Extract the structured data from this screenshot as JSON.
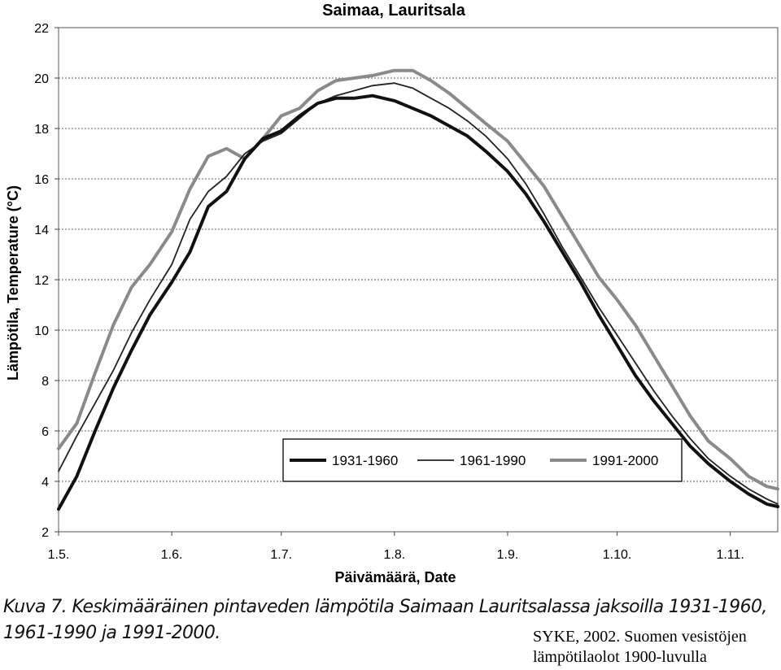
{
  "chart_data": {
    "type": "line",
    "title": "Saimaa, Lauritsala",
    "xlabel": "Päivämäärä, Date",
    "ylabel": "Lämpötila, Temperature (°C)",
    "ylim": [
      2,
      22
    ],
    "yticks": [
      "2",
      "4",
      "6",
      "8",
      "10",
      "12",
      "14",
      "16",
      "18",
      "20",
      "22"
    ],
    "xlim": [
      0,
      197
    ],
    "xticks": [
      {
        "label": "1.5.",
        "day": 0
      },
      {
        "label": "1.6.",
        "day": 31
      },
      {
        "label": "1.7.",
        "day": 61
      },
      {
        "label": "1.8.",
        "day": 92
      },
      {
        "label": "1.9.",
        "day": 123
      },
      {
        "label": "1.10.",
        "day": 153
      },
      {
        "label": "1.11.",
        "day": 184
      }
    ],
    "grid": "horizontal dotted",
    "legend_position": "bottom-right",
    "series": [
      {
        "name": "1931-1960",
        "color": "#111111",
        "style": "thick",
        "days": [
          0,
          5,
          10,
          15,
          20,
          25,
          31,
          36,
          41,
          46,
          51,
          56,
          61,
          66,
          71,
          76,
          81,
          86,
          92,
          97,
          102,
          107,
          112,
          117,
          123,
          128,
          133,
          138,
          143,
          148,
          153,
          158,
          163,
          168,
          173,
          178,
          184,
          189,
          194,
          197
        ],
        "values": [
          2.9,
          4.2,
          6.0,
          7.7,
          9.2,
          10.6,
          11.9,
          13.1,
          14.9,
          15.5,
          16.8,
          17.6,
          17.9,
          18.5,
          19.0,
          19.2,
          19.2,
          19.3,
          19.1,
          18.8,
          18.5,
          18.1,
          17.7,
          17.1,
          16.3,
          15.4,
          14.3,
          13.1,
          11.9,
          10.6,
          9.4,
          8.2,
          7.2,
          6.3,
          5.4,
          4.7,
          4.0,
          3.5,
          3.1,
          3.0
        ]
      },
      {
        "name": "1961-1990",
        "color": "#222222",
        "style": "thin",
        "days": [
          0,
          5,
          10,
          15,
          20,
          25,
          31,
          36,
          41,
          46,
          51,
          56,
          61,
          66,
          71,
          76,
          81,
          86,
          92,
          97,
          102,
          107,
          112,
          117,
          123,
          128,
          133,
          138,
          143,
          148,
          153,
          158,
          163,
          168,
          173,
          178,
          184,
          189,
          194,
          197
        ],
        "values": [
          4.4,
          5.8,
          7.1,
          8.4,
          9.9,
          11.2,
          12.6,
          14.4,
          15.5,
          16.1,
          17.0,
          17.5,
          17.8,
          18.4,
          19.0,
          19.3,
          19.5,
          19.7,
          19.8,
          19.6,
          19.2,
          18.8,
          18.3,
          17.7,
          16.8,
          15.8,
          14.6,
          13.3,
          12.1,
          10.9,
          9.8,
          8.7,
          7.6,
          6.6,
          5.7,
          4.9,
          4.2,
          3.7,
          3.3,
          3.1
        ]
      },
      {
        "name": "1991-2000",
        "color": "#8a8a8a",
        "style": "thick",
        "days": [
          0,
          5,
          10,
          15,
          20,
          25,
          31,
          36,
          41,
          46,
          51,
          56,
          61,
          66,
          71,
          76,
          81,
          86,
          92,
          97,
          102,
          107,
          112,
          117,
          123,
          128,
          133,
          138,
          143,
          148,
          153,
          158,
          163,
          168,
          173,
          178,
          184,
          189,
          194,
          197
        ],
        "values": [
          5.3,
          6.3,
          8.3,
          10.2,
          11.7,
          12.6,
          13.9,
          15.6,
          16.9,
          17.2,
          16.8,
          17.6,
          18.5,
          18.8,
          19.5,
          19.9,
          20.0,
          20.1,
          20.3,
          20.3,
          19.9,
          19.4,
          18.8,
          18.2,
          17.5,
          16.6,
          15.7,
          14.5,
          13.3,
          12.1,
          11.2,
          10.2,
          9.0,
          7.8,
          6.6,
          5.6,
          4.9,
          4.2,
          3.8,
          3.7
        ]
      }
    ]
  },
  "caption": {
    "line1": "Kuva 7. Keskimääräinen pintaveden lämpötila Saimaan Lauritsalassa jaksoilla 1931-1960,",
    "line2": "1961-1990 ja 1991-2000."
  },
  "source": {
    "line1": "SYKE, 2002. Suomen vesistöjen",
    "line2": "lämpötilaolot 1900-luvulla"
  }
}
